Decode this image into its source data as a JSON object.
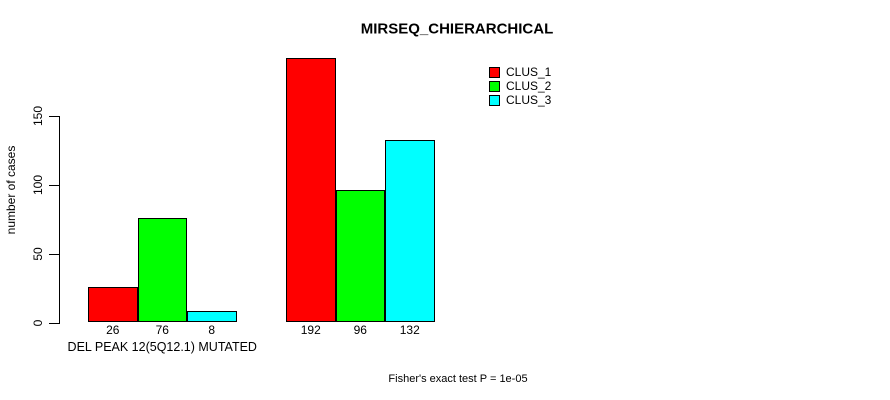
{
  "chart_data": {
    "type": "bar",
    "title": "MIRSEQ_CHIERARCHICAL",
    "ylabel": "number of cases",
    "xlabel": "",
    "categories": [
      "DEL PEAK 12(5Q12.1) MUTATED",
      ""
    ],
    "series": [
      {
        "name": "CLUS_1",
        "color": "#ff0000",
        "values": [
          26,
          192
        ]
      },
      {
        "name": "CLUS_2",
        "color": "#00ff00",
        "values": [
          76,
          96
        ]
      },
      {
        "name": "CLUS_3",
        "color": "#00ffff",
        "values": [
          8,
          132
        ]
      }
    ],
    "yticks": [
      0,
      50,
      100,
      150
    ],
    "ylim": [
      0,
      200
    ],
    "grid": false,
    "legend_position": "top-right",
    "bar_value_labels_shown": true,
    "annotation": "Fisher's exact test P = 1e-05",
    "colors": {
      "bar_border": "#000000",
      "axis": "#000000",
      "background": "#ffffff"
    }
  }
}
